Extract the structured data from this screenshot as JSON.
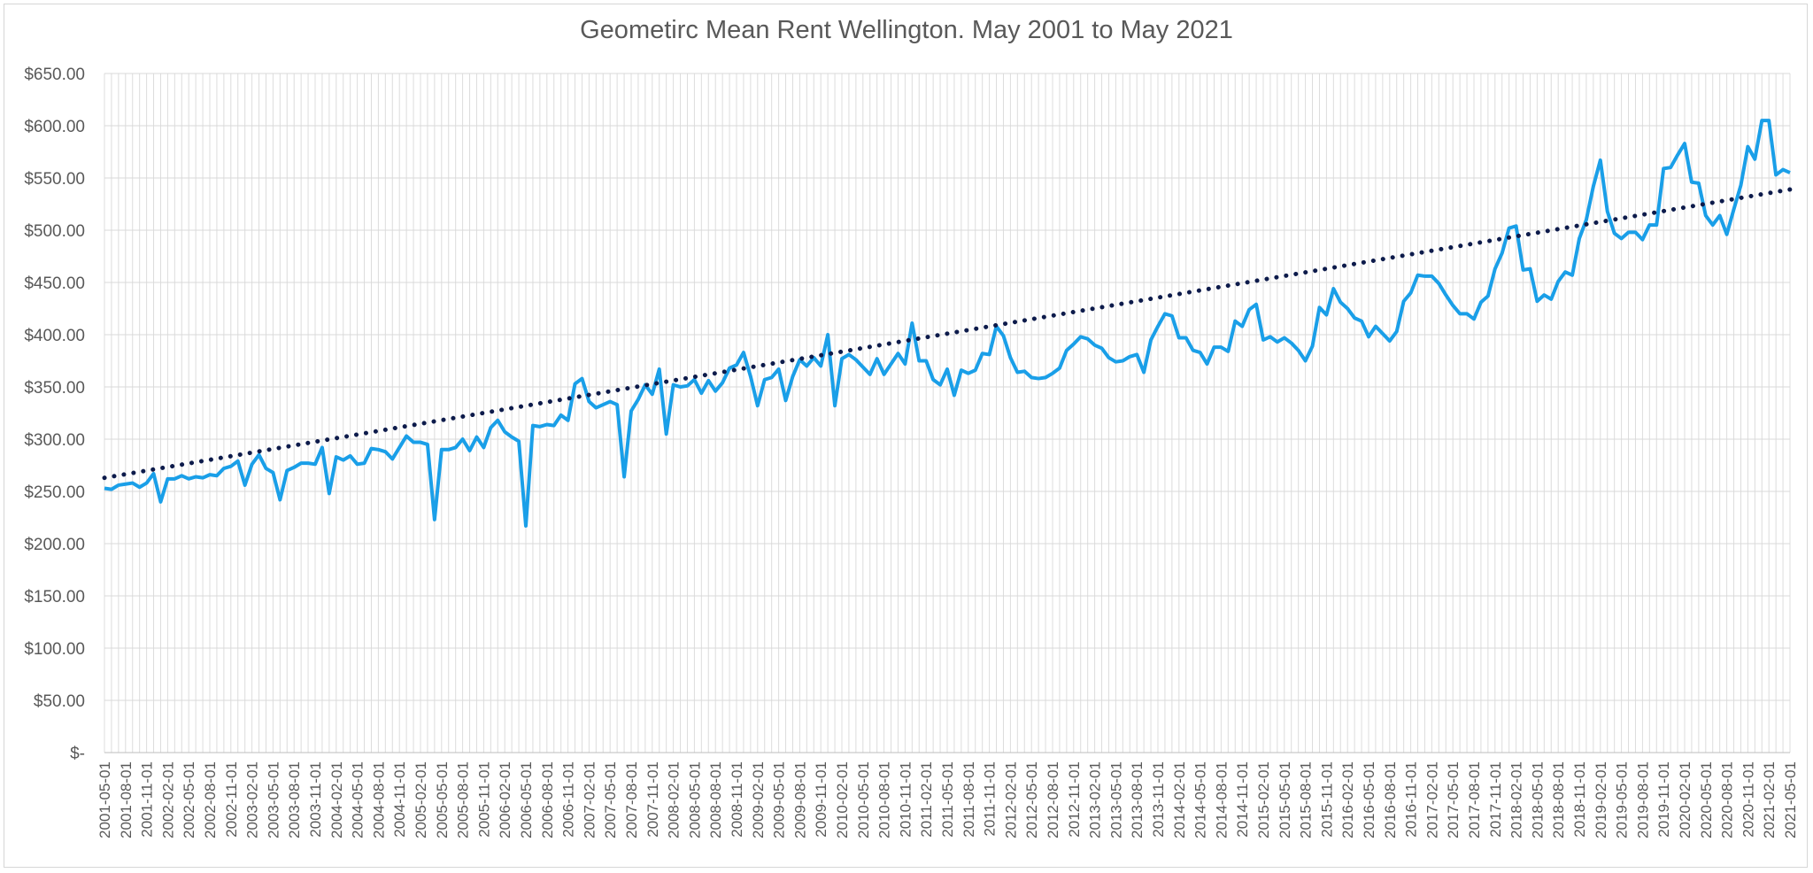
{
  "chart_data": {
    "type": "line",
    "title": "Geometirc Mean Rent Wellington. May 2001 to May 2021",
    "xlabel": "",
    "ylabel": "",
    "ylim": [
      0,
      650
    ],
    "y_tick_labels": [
      "$-",
      "$50.00",
      "$100.00",
      "$150.00",
      "$200.00",
      "$250.00",
      "$300.00",
      "$350.00",
      "$400.00",
      "$450.00",
      "$500.00",
      "$550.00",
      "$600.00",
      "$650.00"
    ],
    "x_tick_labels": [
      "2001-05-01",
      "2001-08-01",
      "2001-11-01",
      "2002-02-01",
      "2002-05-01",
      "2002-08-01",
      "2002-11-01",
      "2003-02-01",
      "2003-05-01",
      "2003-08-01",
      "2003-11-01",
      "2004-02-01",
      "2004-05-01",
      "2004-08-01",
      "2004-11-01",
      "2005-02-01",
      "2005-05-01",
      "2005-08-01",
      "2005-11-01",
      "2006-02-01",
      "2006-05-01",
      "2006-08-01",
      "2006-11-01",
      "2007-02-01",
      "2007-05-01",
      "2007-08-01",
      "2007-11-01",
      "2008-02-01",
      "2008-05-01",
      "2008-08-01",
      "2008-11-01",
      "2009-02-01",
      "2009-05-01",
      "2009-08-01",
      "2009-11-01",
      "2010-02-01",
      "2010-05-01",
      "2010-08-01",
      "2010-11-01",
      "2011-02-01",
      "2011-05-01",
      "2011-08-01",
      "2011-11-01",
      "2012-02-01",
      "2012-05-01",
      "2012-08-01",
      "2012-11-01",
      "2013-02-01",
      "2013-05-01",
      "2013-08-01",
      "2013-11-01",
      "2014-02-01",
      "2014-05-01",
      "2014-08-01",
      "2014-11-01",
      "2015-02-01",
      "2015-05-01",
      "2015-08-01",
      "2015-11-01",
      "2016-02-01",
      "2016-05-01",
      "2016-08-01",
      "2016-11-01",
      "2017-02-01",
      "2017-05-01",
      "2017-08-01",
      "2017-11-01",
      "2018-02-01",
      "2018-05-01",
      "2018-08-01",
      "2018-11-01",
      "2019-02-01",
      "2019-05-01",
      "2019-08-01",
      "2019-11-01",
      "2020-02-01",
      "2020-05-01",
      "2020-08-01",
      "2020-11-01",
      "2021-02-01",
      "2021-05-01"
    ],
    "grid": true,
    "legend": "none",
    "x_start": "2001-05",
    "x_end": "2021-05",
    "series": [
      {
        "color": "#1a9fe8",
        "values": [
          253,
          252,
          256,
          257,
          258,
          254,
          258,
          267,
          240,
          262,
          262,
          265,
          262,
          264,
          263,
          266,
          265,
          272,
          274,
          279,
          256,
          276,
          285,
          272,
          268,
          242,
          270,
          273,
          277,
          277,
          276,
          292,
          248,
          283,
          280,
          284,
          276,
          277,
          291,
          290,
          288,
          281,
          292,
          303,
          297,
          297,
          295,
          223,
          290,
          290,
          292,
          300,
          289,
          302,
          292,
          311,
          318,
          307,
          302,
          298,
          217,
          313,
          312,
          314,
          313,
          323,
          318,
          353,
          358,
          336,
          330,
          333,
          336,
          333,
          264,
          327,
          338,
          352,
          343,
          367,
          305,
          352,
          350,
          351,
          357,
          344,
          356,
          346,
          354,
          368,
          371,
          383,
          360,
          332,
          357,
          359,
          367,
          337,
          360,
          376,
          370,
          378,
          370,
          400,
          332,
          377,
          381,
          376,
          369,
          362,
          377,
          362,
          372,
          382,
          372,
          411,
          375,
          375,
          357,
          352,
          367,
          342,
          366,
          363,
          366,
          382,
          381,
          408,
          399,
          378,
          364,
          365,
          359,
          358,
          359,
          363,
          368,
          385,
          391,
          398,
          396,
          390,
          387,
          378,
          374,
          375,
          379,
          381,
          364,
          395,
          408,
          420,
          418,
          397,
          397,
          385,
          383,
          372,
          388,
          388,
          384,
          413,
          408,
          424,
          429,
          395,
          398,
          393,
          397,
          392,
          385,
          375,
          389,
          426,
          419,
          444,
          431,
          425,
          416,
          413,
          398,
          408,
          401,
          394,
          403,
          432,
          440,
          457,
          456,
          456,
          449,
          438,
          428,
          420,
          420,
          415,
          431,
          437,
          463,
          478,
          502,
          504,
          462,
          463,
          432,
          438,
          434,
          451,
          460,
          457,
          492,
          510,
          542,
          567,
          518,
          497,
          492,
          498,
          498,
          491,
          505,
          505,
          559,
          560,
          572,
          583,
          546,
          545,
          514,
          505,
          514,
          496,
          520,
          543,
          580,
          568,
          605,
          605,
          553,
          558,
          555
        ]
      },
      {
        "color": "#0d1b4b",
        "style": "dotted",
        "values": [
          263,
          539
        ]
      }
    ]
  }
}
